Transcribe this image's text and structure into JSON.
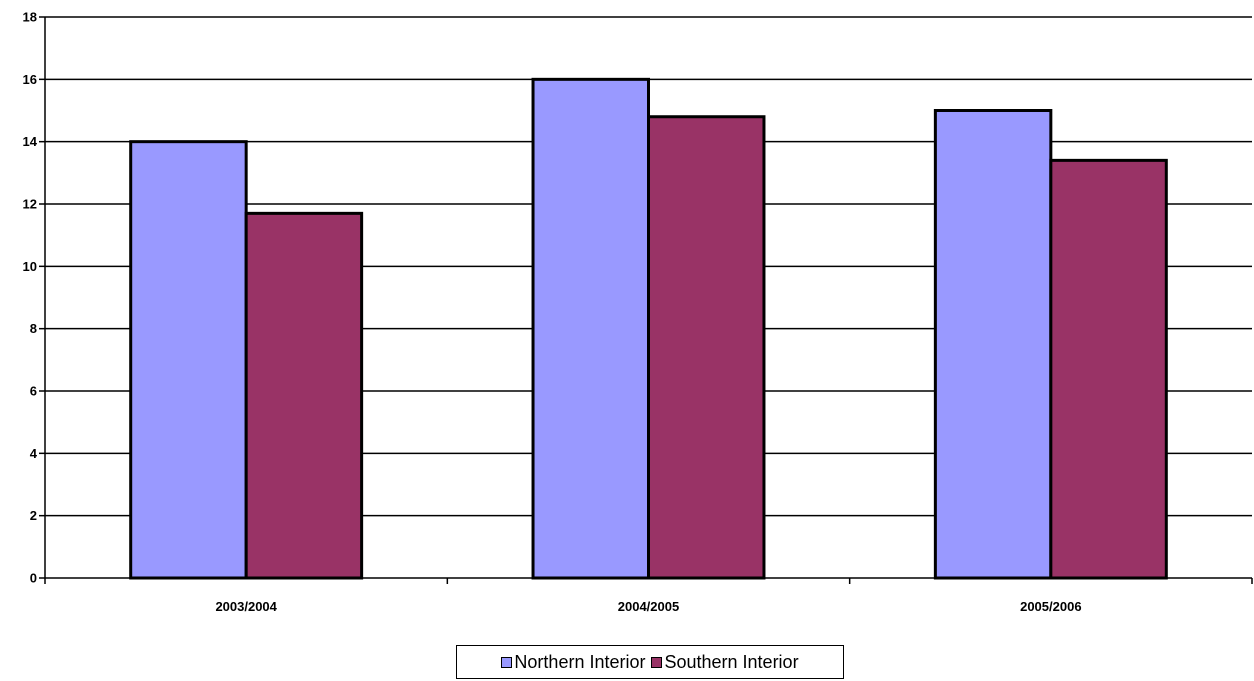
{
  "chart_data": {
    "type": "bar",
    "categories": [
      "2003/2004",
      "2004/2005",
      "2005/2006"
    ],
    "series": [
      {
        "name": "Northern Interior",
        "values": [
          14,
          16,
          15
        ],
        "color": "#9999ff"
      },
      {
        "name": "Southern Interior",
        "values": [
          11.7,
          14.8,
          13.4
        ],
        "color": "#993366"
      }
    ],
    "ylim": [
      0,
      18
    ],
    "yticks": [
      0,
      2,
      4,
      6,
      8,
      10,
      12,
      14,
      16,
      18
    ],
    "grid": true,
    "legend_position": "bottom",
    "title": "",
    "xlabel": "",
    "ylabel": ""
  }
}
